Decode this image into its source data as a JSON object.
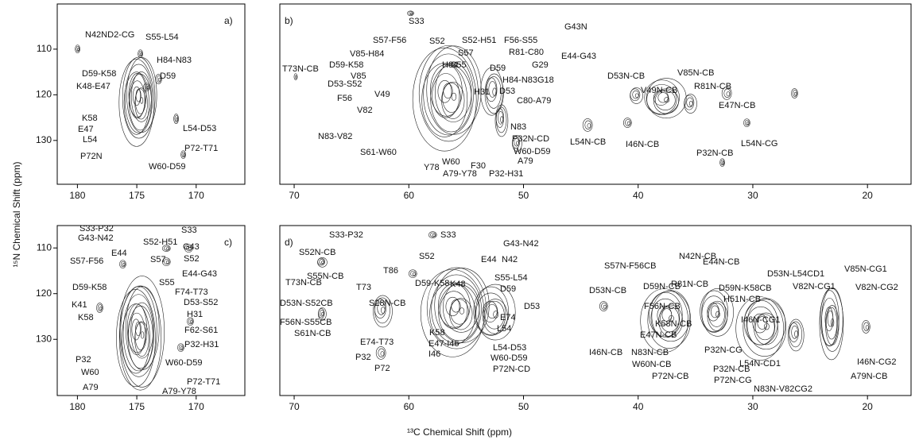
{
  "xlabel": "¹³C Chemical Shift (ppm)",
  "ylabel": "¹⁵N Chemical Shift (ppm)",
  "chart_data": [
    {
      "type": "contour",
      "panel_label": "a)",
      "xlim": [
        181.7,
        165.9
      ],
      "ylim": [
        100.1,
        139.6
      ],
      "xticks": [
        180,
        175,
        170
      ],
      "yticks": [
        110,
        120,
        130
      ],
      "annotations": [
        "N42ND2-CG",
        "S55-L54",
        "H84-N83",
        "D59-K58",
        "D59",
        "K48-E47",
        "K58",
        "E47",
        "L54-D53",
        "L54",
        "P72-T71",
        "P72N",
        "W60-D59"
      ]
    },
    {
      "type": "contour",
      "panel_label": "b)",
      "xlim": [
        71.25,
        16.2
      ],
      "ylim": [
        100.1,
        139.6
      ],
      "xticks": [
        70,
        60,
        50,
        40,
        30,
        20
      ],
      "annotations": [
        "S33",
        "G43N",
        "S52",
        "S52-H51",
        "F56-S55",
        "S57-F56",
        "S57",
        "R81-C80",
        "E44-G43",
        "T73N-CB",
        "V85-H84",
        "H84",
        "S55",
        "G29",
        "D59-K58",
        "D59",
        "G18",
        "V85",
        "H84-N83",
        "D53-S52",
        "D53",
        "D53N-CB",
        "V85N-CB",
        "R81N-CB",
        "F56",
        "V49",
        "H31",
        "C80-A79",
        "V49N-CB",
        "E47N-CB",
        "V82",
        "N83",
        "P32N-CD",
        "N83-V82",
        "S61-W60",
        "W60-D59",
        "L54N-CB",
        "I46N-CB",
        "L54N-CG",
        "P32N-CB",
        "P32-H31",
        "Y78",
        "W60",
        "F30",
        "A79",
        "A79-Y78"
      ]
    },
    {
      "type": "contour",
      "panel_label": "c)",
      "xlim": [
        181.7,
        165.9
      ],
      "ylim": [
        105.1,
        142.3
      ],
      "xticks": [
        180,
        175,
        170
      ],
      "yticks": [
        110,
        120,
        130
      ],
      "annotations": [
        "S33-P32",
        "G43-N42",
        "S33",
        "S52-H51",
        "G43",
        "E44",
        "S52",
        "S57-F56",
        "S57",
        "E44-G43",
        "D59-K58",
        "S55",
        "F74-T73",
        "D53-S52",
        "K41",
        "H31",
        "K58",
        "F62-S61",
        "P32-H31",
        "P32",
        "W60-D59",
        "W60",
        "P72-T71",
        "A79",
        "A79-Y78"
      ]
    },
    {
      "type": "contour",
      "panel_label": "d)",
      "xlim": [
        71.25,
        16.2
      ],
      "ylim": [
        105.1,
        142.3
      ],
      "xticks": [
        70,
        60,
        50,
        40,
        30,
        20
      ],
      "annotations": [
        "S33-P32",
        "S33",
        "G43-N42",
        "N42",
        "S52N-CB",
        "S52",
        "E44",
        "T86",
        "S55N-CB",
        "T73N-CB",
        "T73",
        "D59-K58",
        "K48",
        "S55-L54",
        "D59",
        "S28N-CB",
        "D53N-S52CB",
        "D53",
        "E74",
        "F56N-S55CB",
        "L54",
        "S61N-CB",
        "K58",
        "E47-I46",
        "E74-T73",
        "L54-D53",
        "I46",
        "P32",
        "W60-D59",
        "P72",
        "P72N-CD",
        "S57N-F56CB",
        "N42N-CB",
        "E44N-CB",
        "D59N-CB",
        "R81N-CB",
        "D53N-CB",
        "D53N-L54CD1",
        "V85N-CG1",
        "V82N-CG1",
        "V82N-CG2",
        "D59N-K58CB",
        "H51N-CB",
        "F56N-CB",
        "I46N-CG1",
        "K58N-CB",
        "E47N-CB",
        "I46N-CB",
        "N83N-CB",
        "W60N-CB",
        "P32N-CG",
        "L54N-CD1",
        "P72N-CB",
        "P32N-CB",
        "P72N-CG",
        "I46N-CG2",
        "A79N-CB",
        "N83N-V82CG2"
      ]
    }
  ]
}
